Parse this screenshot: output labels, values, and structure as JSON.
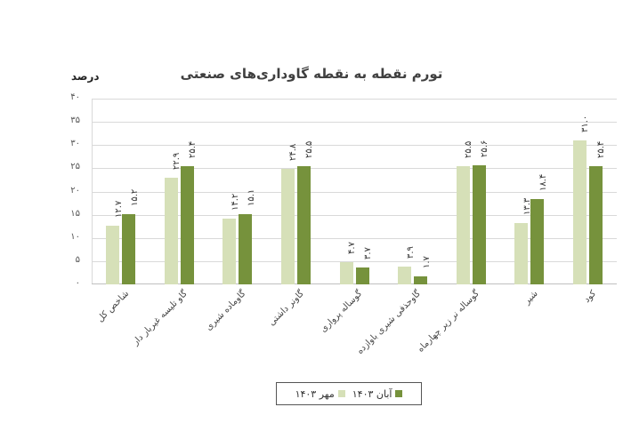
{
  "chart_data": {
    "type": "bar",
    "title": "تورم نقطه به نقطه گاوداری‌های صنعتی",
    "ylabel": "درصد",
    "xlabel": "",
    "ylim": [
      0,
      40
    ],
    "yticks": [
      "۰",
      "۵",
      "۱۰",
      "۱۵",
      "۲۰",
      "۲۵",
      "۳۰",
      "۳۵",
      "۴۰"
    ],
    "grid": true,
    "legend_position": "bottom",
    "categories": [
      "شاخص کل",
      "گاو تلیسه غیربار دار",
      "گاوماده شیری",
      "گاونر داشتی",
      "گوساله پرواری",
      "گاوحذفی شیری باوازده",
      "گوساله نر زیر چهارماه",
      "شیر",
      "کود"
    ],
    "series": [
      {
        "name": "مهر ۱۴۰۳",
        "color": "#d6e0b8",
        "values": [
          12.7,
          22.9,
          14.2,
          24.8,
          4.7,
          3.9,
          25.5,
          13.3,
          31.0
        ],
        "labels": [
          "۱۲.۷",
          "۲۲.۹",
          "۱۴.۲",
          "۲۴.۸",
          "۴.۷",
          "۳.۹",
          "۲۵.۵",
          "۱۳.۳",
          "۳۱.۰"
        ]
      },
      {
        "name": "آبان ۱۴۰۳",
        "color": "#76923c",
        "values": [
          15.2,
          25.4,
          15.1,
          25.5,
          3.7,
          1.7,
          25.6,
          18.4,
          25.4
        ],
        "labels": [
          "۱۵.۲",
          "۲۵.۴",
          "۱۵.۱",
          "۲۵.۵",
          "۳.۷",
          "۱.۷",
          "۲۵.۶",
          "۱۸.۴",
          "۲۵.۴"
        ]
      }
    ]
  },
  "legend": {
    "items": [
      {
        "label": "آبان ۱۴۰۳",
        "color": "#76923c"
      },
      {
        "label": "مهر ۱۴۰۳",
        "color": "#d6e0b8"
      }
    ]
  }
}
